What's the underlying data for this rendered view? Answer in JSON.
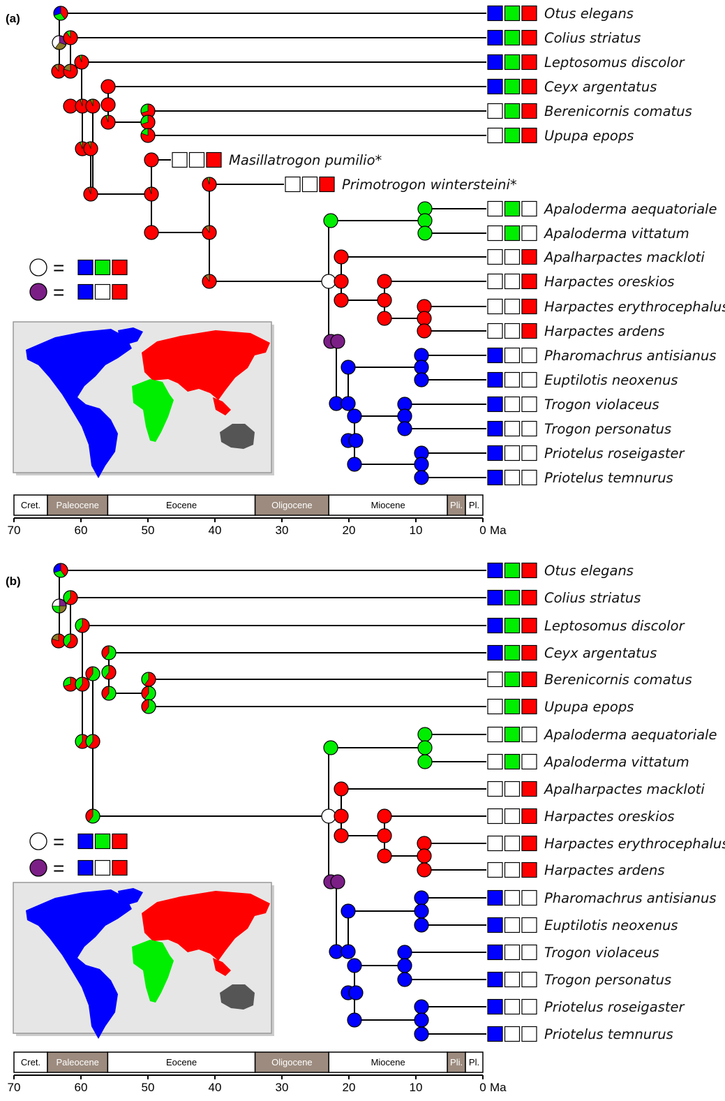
{
  "panels": [
    {
      "label": "(a)",
      "taxa": [
        {
          "name": "Otus elegans",
          "areas": [
            1,
            1,
            1
          ]
        },
        {
          "name": "Colius striatus",
          "areas": [
            1,
            1,
            1
          ]
        },
        {
          "name": "Leptosomus discolor",
          "areas": [
            1,
            1,
            1
          ]
        },
        {
          "name": "Ceyx argentatus",
          "areas": [
            1,
            1,
            1
          ]
        },
        {
          "name": "Berenicornis comatus",
          "areas": [
            0,
            1,
            1
          ]
        },
        {
          "name": "Upupa epops",
          "areas": [
            0,
            1,
            1
          ]
        },
        {
          "name": "Masillatrogon pumilio*",
          "areas": [
            0,
            0,
            1
          ]
        },
        {
          "name": "Primotrogon wintersteini*",
          "areas": [
            0,
            0,
            1
          ]
        },
        {
          "name": "Apaloderma aequatoriale",
          "areas": [
            0,
            1,
            0
          ]
        },
        {
          "name": "Apaloderma vittatum",
          "areas": [
            0,
            1,
            0
          ]
        },
        {
          "name": "Apalharpactes mackloti",
          "areas": [
            0,
            0,
            1
          ]
        },
        {
          "name": "Harpactes oreskios",
          "areas": [
            0,
            0,
            1
          ]
        },
        {
          "name": "Harpactes erythrocephalus",
          "areas": [
            0,
            0,
            1
          ]
        },
        {
          "name": "Harpactes ardens",
          "areas": [
            0,
            0,
            1
          ]
        },
        {
          "name": "Pharomachrus antisianus",
          "areas": [
            1,
            0,
            0
          ]
        },
        {
          "name": "Euptilotis neoxenus",
          "areas": [
            1,
            0,
            0
          ]
        },
        {
          "name": "Trogon violaceus",
          "areas": [
            1,
            0,
            0
          ]
        },
        {
          "name": "Trogon personatus",
          "areas": [
            1,
            0,
            0
          ]
        },
        {
          "name": "Priotelus roseigaster",
          "areas": [
            1,
            0,
            0
          ]
        },
        {
          "name": "Priotelus temnurus",
          "areas": [
            1,
            0,
            0
          ]
        }
      ]
    },
    {
      "label": "(b)",
      "taxa": [
        {
          "name": "Otus elegans",
          "areas": [
            1,
            1,
            1
          ]
        },
        {
          "name": "Colius striatus",
          "areas": [
            1,
            1,
            1
          ]
        },
        {
          "name": "Leptosomus discolor",
          "areas": [
            1,
            1,
            1
          ]
        },
        {
          "name": "Ceyx argentatus",
          "areas": [
            1,
            1,
            1
          ]
        },
        {
          "name": "Berenicornis comatus",
          "areas": [
            0,
            1,
            1
          ]
        },
        {
          "name": "Upupa epops",
          "areas": [
            0,
            1,
            1
          ]
        },
        {
          "name": "Apaloderma aequatoriale",
          "areas": [
            0,
            1,
            0
          ]
        },
        {
          "name": "Apaloderma vittatum",
          "areas": [
            0,
            1,
            0
          ]
        },
        {
          "name": "Apalharpactes mackloti",
          "areas": [
            0,
            0,
            1
          ]
        },
        {
          "name": "Harpactes oreskios",
          "areas": [
            0,
            0,
            1
          ]
        },
        {
          "name": "Harpactes erythrocephalus",
          "areas": [
            0,
            0,
            1
          ]
        },
        {
          "name": "Harpactes ardens",
          "areas": [
            0,
            0,
            1
          ]
        },
        {
          "name": "Pharomachrus antisianus",
          "areas": [
            1,
            0,
            0
          ]
        },
        {
          "name": "Euptilotis neoxenus",
          "areas": [
            1,
            0,
            0
          ]
        },
        {
          "name": "Trogon violaceus",
          "areas": [
            1,
            0,
            0
          ]
        },
        {
          "name": "Trogon personatus",
          "areas": [
            1,
            0,
            0
          ]
        },
        {
          "name": "Priotelus roseigaster",
          "areas": [
            1,
            0,
            0
          ]
        },
        {
          "name": "Priotelus temnurus",
          "areas": [
            1,
            0,
            0
          ]
        }
      ]
    }
  ],
  "legend": [
    {
      "symbol_color": "#ffffff",
      "areas": [
        1,
        1,
        1
      ]
    },
    {
      "symbol_color": "#7b1f86",
      "areas": [
        1,
        0,
        1
      ]
    }
  ],
  "timescale": {
    "epochs": [
      {
        "name": "Cret.",
        "from": 70,
        "to": 65,
        "shade": false
      },
      {
        "name": "Paleocene",
        "from": 65,
        "to": 56,
        "shade": true
      },
      {
        "name": "Eocene",
        "from": 56,
        "to": 34,
        "shade": false
      },
      {
        "name": "Oligocene",
        "from": 34,
        "to": 23,
        "shade": true
      },
      {
        "name": "Miocene",
        "from": 23,
        "to": 5.3,
        "shade": false
      },
      {
        "name": "Pli.",
        "from": 5.3,
        "to": 2.6,
        "shade": true
      },
      {
        "name": "Pl.",
        "from": 2.6,
        "to": 0,
        "shade": false
      }
    ],
    "ticks": [
      70,
      60,
      50,
      40,
      30,
      20,
      10,
      0
    ],
    "unit": "Ma"
  },
  "colors": {
    "area_1": "#0000ff",
    "area_2": "#00ee00",
    "area_3": "#ff0000",
    "australia": "#555555",
    "map_background": "#e6e6e6",
    "epoch_shade": "#9c8b7e"
  }
}
